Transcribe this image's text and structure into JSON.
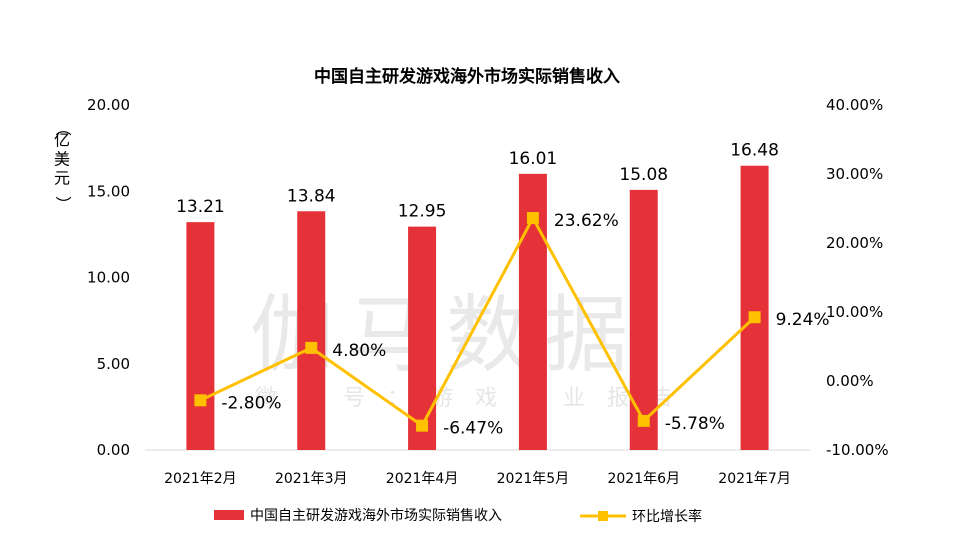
{
  "chart_data": {
    "type": "bar",
    "title": "中国自主研发游戏海外市场实际销售收入",
    "ylabel": "（亿美元）",
    "categories": [
      "2021年2月",
      "2021年3月",
      "2021年4月",
      "2021年5月",
      "2021年6月",
      "2021年7月"
    ],
    "series": [
      {
        "name": "中国自主研发游戏海外市场实际销售收入",
        "type": "bar",
        "axis": "left",
        "color": "#e53238",
        "values": [
          13.21,
          13.84,
          12.95,
          16.01,
          15.08,
          16.48
        ],
        "labels": [
          "13.21",
          "13.84",
          "12.95",
          "16.01",
          "15.08",
          "16.48"
        ]
      },
      {
        "name": "环比增长率",
        "type": "line",
        "axis": "right",
        "color": "#ffc000",
        "values": [
          -2.8,
          4.8,
          -6.47,
          23.62,
          -5.78,
          9.24
        ],
        "labels": [
          "-2.80%",
          "4.80%",
          "-6.47%",
          "23.62%",
          "-5.78%",
          "9.24%"
        ]
      }
    ],
    "ylim": [
      0,
      20
    ],
    "y2lim": [
      -10,
      40
    ],
    "yticks": [
      "20.00",
      "15.00",
      "10.00",
      "5.00",
      "0.00"
    ],
    "y2ticks": [
      "40.00%",
      "30.00%",
      "20.00%",
      "10.00%",
      "0.00%",
      "-10.00%"
    ],
    "grid": false,
    "legend": "bottom"
  },
  "watermark": {
    "main": "伽马数据",
    "sub": "微信号：游戏产业报告"
  }
}
